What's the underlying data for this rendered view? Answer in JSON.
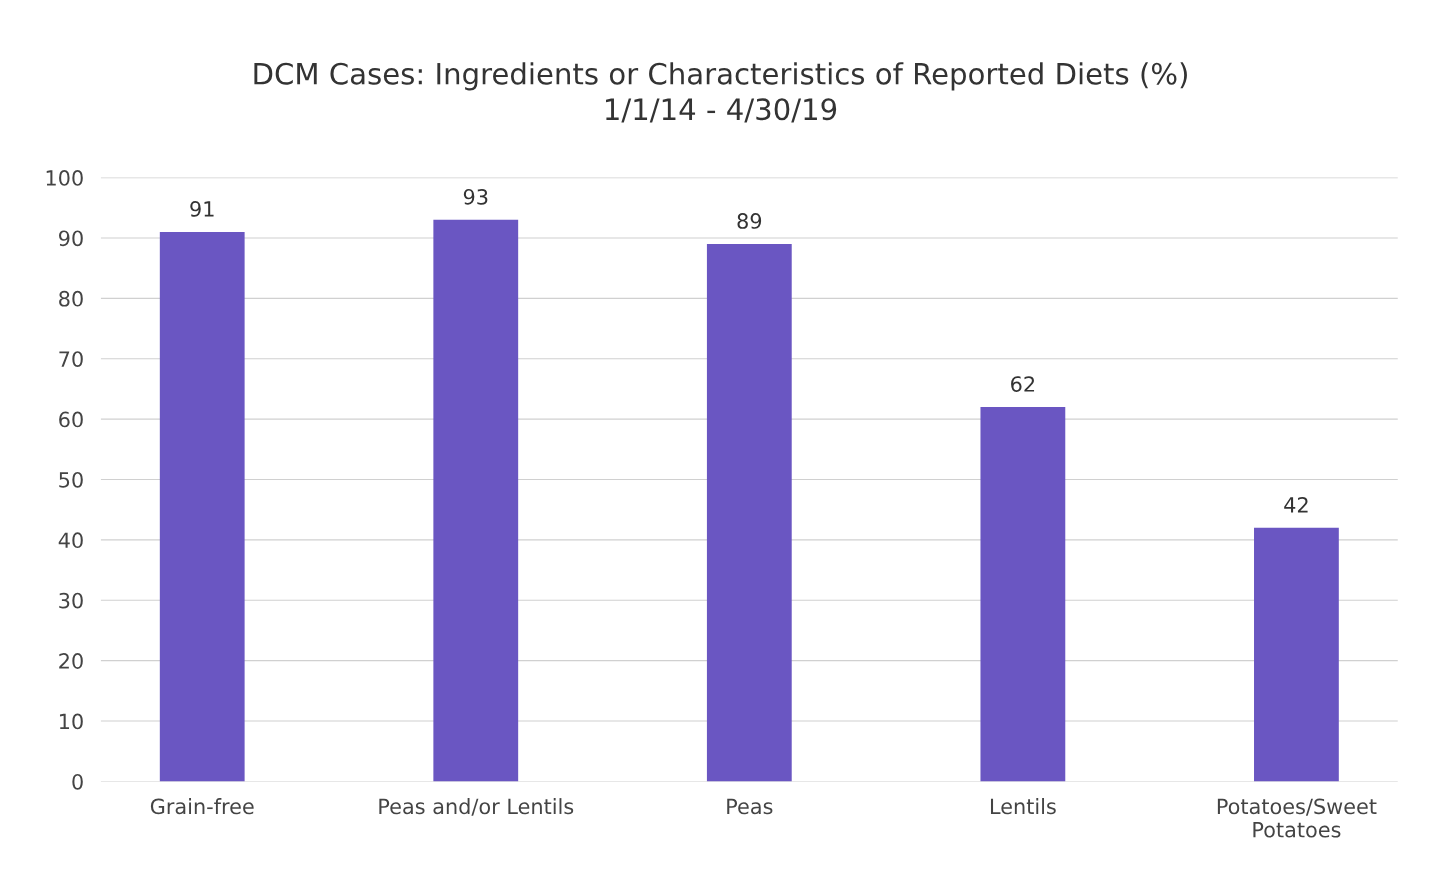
{
  "chart_data": {
    "type": "bar",
    "title": "DCM Cases: Ingredients or Characteristics of Reported Diets (%)",
    "subtitle": "1/1/14 - 4/30/19",
    "categories": [
      "Grain-free",
      "Peas and/or Lentils",
      "Peas",
      "Lentils",
      "Potatoes/Sweet\nPotatoes"
    ],
    "values": [
      91,
      93,
      89,
      62,
      42
    ],
    "color": "#6a56c2",
    "ylim": [
      0,
      100
    ],
    "yticks": [
      0,
      10,
      20,
      30,
      40,
      50,
      60,
      70,
      80,
      90,
      100
    ],
    "grid": "y",
    "data_labels": true,
    "legend": false
  }
}
